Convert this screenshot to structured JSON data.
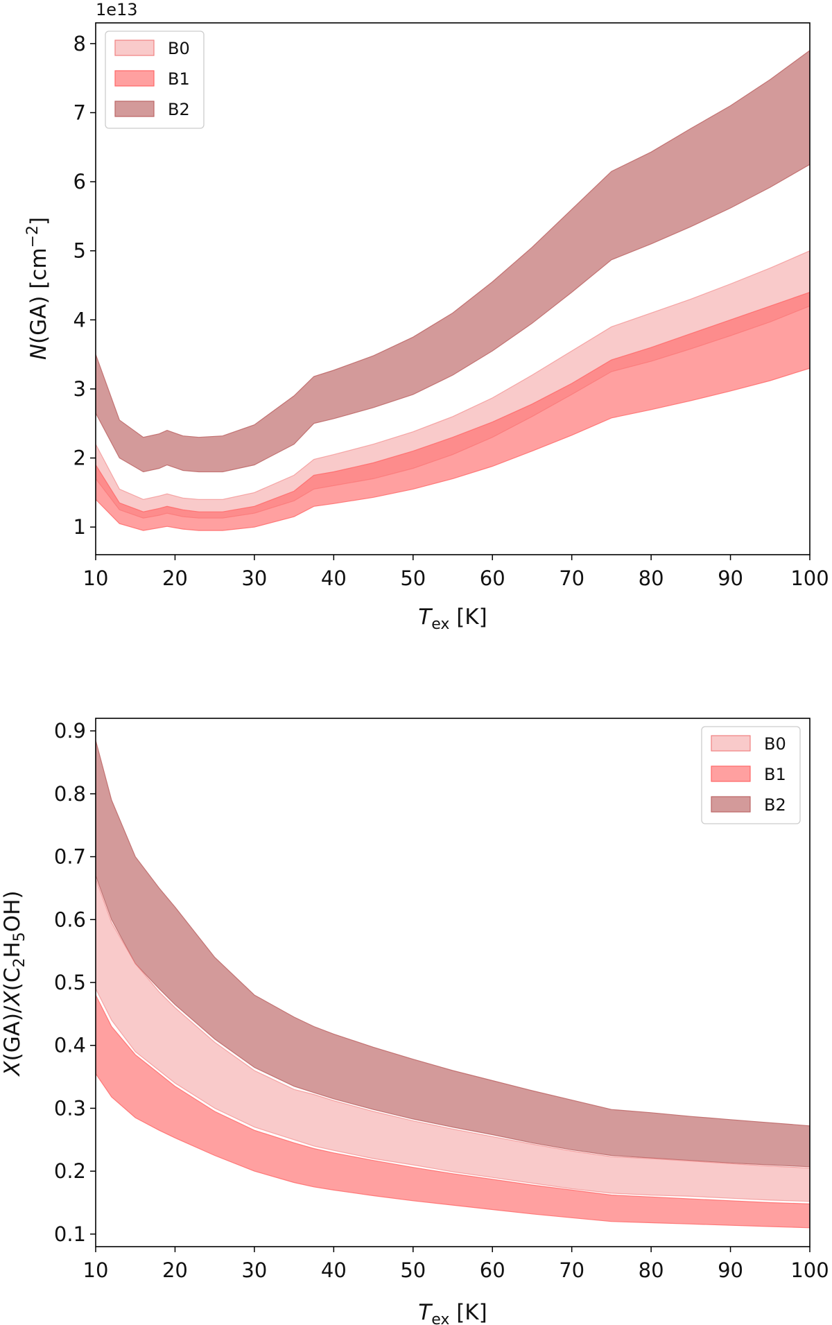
{
  "chart_data": [
    {
      "type": "area",
      "panel": "top",
      "title": "",
      "xlabel_main": "T",
      "xlabel_sub": "ex",
      "xlabel_unit": " [K]",
      "ylabel_prefix": "(GA)  [cm",
      "ylabel_italic": "N",
      "ylabel_sup": "−2",
      "ylabel_suffix": "]",
      "offset_text": "1e13",
      "xlim": [
        10,
        100
      ],
      "ylim": [
        0.6,
        8.3
      ],
      "xticks": [
        10,
        20,
        30,
        40,
        50,
        60,
        70,
        80,
        90,
        100
      ],
      "xtick_labels": [
        "10",
        "20",
        "30",
        "40",
        "50",
        "60",
        "70",
        "80",
        "90",
        "100"
      ],
      "yticks": [
        1,
        2,
        3,
        4,
        5,
        6,
        7,
        8
      ],
      "ytick_labels": [
        "1",
        "2",
        "3",
        "4",
        "5",
        "6",
        "7",
        "8"
      ],
      "legend_position": "top-left",
      "series": [
        {
          "name": "B2",
          "color": "#bc6464",
          "opacity": 0.65,
          "x": [
            10,
            13,
            16,
            18,
            19,
            21,
            23,
            26,
            30,
            35,
            37.5,
            40,
            45,
            50,
            55,
            60,
            65,
            70,
            75,
            80,
            85,
            90,
            95,
            100
          ],
          "lower": [
            2.65,
            2.0,
            1.8,
            1.85,
            1.9,
            1.82,
            1.8,
            1.8,
            1.9,
            2.2,
            2.5,
            2.57,
            2.73,
            2.92,
            3.2,
            3.55,
            3.95,
            4.4,
            4.87,
            5.1,
            5.35,
            5.62,
            5.92,
            6.25
          ],
          "upper": [
            3.5,
            2.55,
            2.3,
            2.35,
            2.4,
            2.32,
            2.3,
            2.32,
            2.48,
            2.9,
            3.18,
            3.27,
            3.48,
            3.75,
            4.1,
            4.55,
            5.05,
            5.6,
            6.15,
            6.43,
            6.77,
            7.1,
            7.48,
            7.9
          ]
        },
        {
          "name": "B0",
          "color": "#f08080",
          "opacity": 0.42,
          "x": [
            10,
            13,
            16,
            18,
            19,
            21,
            23,
            26,
            30,
            35,
            37.5,
            40,
            45,
            50,
            55,
            60,
            65,
            70,
            75,
            80,
            85,
            90,
            95,
            100
          ],
          "lower": [
            1.7,
            1.25,
            1.13,
            1.17,
            1.2,
            1.15,
            1.13,
            1.13,
            1.2,
            1.38,
            1.55,
            1.6,
            1.7,
            1.85,
            2.05,
            2.3,
            2.6,
            2.92,
            3.25,
            3.4,
            3.58,
            3.77,
            3.97,
            4.2
          ],
          "upper": [
            2.2,
            1.55,
            1.4,
            1.45,
            1.48,
            1.42,
            1.4,
            1.4,
            1.5,
            1.75,
            1.98,
            2.05,
            2.2,
            2.38,
            2.6,
            2.87,
            3.2,
            3.55,
            3.9,
            4.1,
            4.3,
            4.52,
            4.75,
            5.0
          ]
        },
        {
          "name": "B1",
          "color": "#ff6666",
          "opacity": 0.62,
          "x": [
            10,
            13,
            16,
            18,
            19,
            21,
            23,
            26,
            30,
            35,
            37.5,
            40,
            45,
            50,
            55,
            60,
            65,
            70,
            75,
            80,
            85,
            90,
            95,
            100
          ],
          "lower": [
            1.4,
            1.05,
            0.95,
            0.99,
            1.01,
            0.97,
            0.95,
            0.95,
            1.0,
            1.15,
            1.3,
            1.34,
            1.43,
            1.55,
            1.7,
            1.88,
            2.1,
            2.33,
            2.58,
            2.7,
            2.83,
            2.97,
            3.12,
            3.3
          ],
          "upper": [
            1.9,
            1.35,
            1.22,
            1.27,
            1.3,
            1.25,
            1.22,
            1.22,
            1.3,
            1.52,
            1.75,
            1.8,
            1.93,
            2.1,
            2.3,
            2.52,
            2.78,
            3.08,
            3.42,
            3.6,
            3.8,
            4.0,
            4.2,
            4.4
          ]
        }
      ],
      "legend": [
        "B0",
        "B1",
        "B2"
      ]
    },
    {
      "type": "area",
      "panel": "bottom",
      "title": "",
      "xlabel_main": "T",
      "xlabel_sub": "ex",
      "xlabel_unit": " [K]",
      "ylabel_text": "X(GA)/X(C2H5OH)",
      "xlim": [
        10,
        100
      ],
      "ylim": [
        0.08,
        0.92
      ],
      "xticks": [
        10,
        20,
        30,
        40,
        50,
        60,
        70,
        80,
        90,
        100
      ],
      "xtick_labels": [
        "10",
        "20",
        "30",
        "40",
        "50",
        "60",
        "70",
        "80",
        "90",
        "100"
      ],
      "yticks": [
        0.1,
        0.2,
        0.3,
        0.4,
        0.5,
        0.6,
        0.7,
        0.8,
        0.9
      ],
      "ytick_labels": [
        "0.1",
        "0.2",
        "0.3",
        "0.4",
        "0.5",
        "0.6",
        "0.7",
        "0.8",
        "0.9"
      ],
      "legend_position": "top-right",
      "series": [
        {
          "name": "B2",
          "color": "#bc6464",
          "opacity": 0.65,
          "x": [
            10,
            12,
            15,
            18,
            20,
            25,
            30,
            35,
            37.5,
            40,
            45,
            50,
            55,
            60,
            65,
            70,
            75,
            80,
            85,
            90,
            95,
            100
          ],
          "lower": [
            0.67,
            0.6,
            0.53,
            0.49,
            0.465,
            0.41,
            0.365,
            0.335,
            0.325,
            0.315,
            0.298,
            0.283,
            0.27,
            0.258,
            0.245,
            0.234,
            0.225,
            0.221,
            0.217,
            0.213,
            0.21,
            0.207
          ],
          "upper": [
            0.885,
            0.79,
            0.7,
            0.65,
            0.62,
            0.54,
            0.48,
            0.445,
            0.43,
            0.418,
            0.397,
            0.378,
            0.36,
            0.344,
            0.328,
            0.313,
            0.298,
            0.293,
            0.287,
            0.282,
            0.277,
            0.272
          ]
        },
        {
          "name": "B0",
          "color": "#f08080",
          "opacity": 0.42,
          "x": [
            10,
            12,
            15,
            18,
            20,
            25,
            30,
            35,
            37.5,
            40,
            45,
            50,
            55,
            60,
            65,
            70,
            75,
            80,
            85,
            90,
            95,
            100
          ],
          "lower": [
            0.49,
            0.44,
            0.39,
            0.36,
            0.34,
            0.3,
            0.27,
            0.25,
            0.24,
            0.233,
            0.22,
            0.21,
            0.199,
            0.19,
            0.181,
            0.172,
            0.165,
            0.162,
            0.16,
            0.157,
            0.154,
            0.152
          ],
          "upper": [
            0.665,
            0.595,
            0.53,
            0.485,
            0.46,
            0.405,
            0.36,
            0.33,
            0.322,
            0.312,
            0.295,
            0.28,
            0.267,
            0.255,
            0.243,
            0.232,
            0.223,
            0.22,
            0.216,
            0.212,
            0.208,
            0.205
          ]
        },
        {
          "name": "B1",
          "color": "#ff6666",
          "opacity": 0.62,
          "x": [
            10,
            12,
            15,
            18,
            20,
            25,
            30,
            35,
            37.5,
            40,
            45,
            50,
            55,
            60,
            65,
            70,
            75,
            80,
            85,
            90,
            95,
            100
          ],
          "lower": [
            0.355,
            0.318,
            0.285,
            0.265,
            0.253,
            0.225,
            0.2,
            0.182,
            0.175,
            0.17,
            0.161,
            0.153,
            0.146,
            0.139,
            0.132,
            0.126,
            0.12,
            0.118,
            0.116,
            0.114,
            0.112,
            0.11
          ],
          "upper": [
            0.48,
            0.43,
            0.385,
            0.355,
            0.335,
            0.295,
            0.265,
            0.245,
            0.236,
            0.229,
            0.217,
            0.206,
            0.196,
            0.187,
            0.178,
            0.17,
            0.162,
            0.159,
            0.156,
            0.153,
            0.15,
            0.148
          ]
        }
      ],
      "legend": [
        "B0",
        "B1",
        "B2"
      ]
    }
  ]
}
